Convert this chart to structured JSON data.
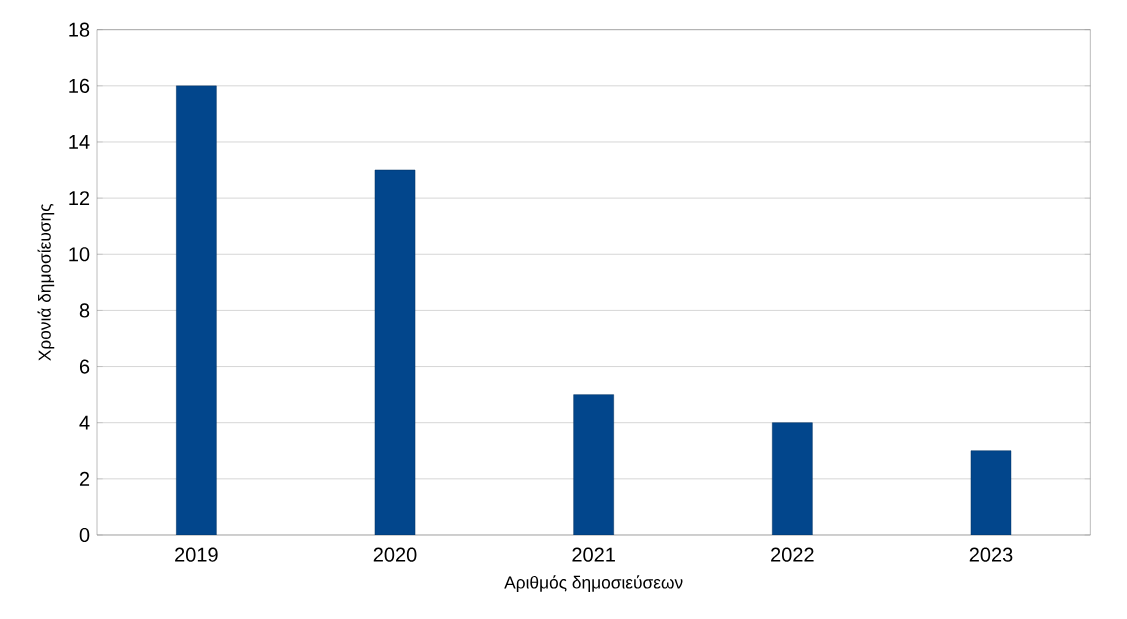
{
  "chart_data": {
    "type": "bar",
    "xlabel": "Αριθμός δημοσιεύσεων",
    "ylabel": "Χρονιά δημοσίευσης",
    "categories": [
      "2019",
      "2020",
      "2021",
      "2022",
      "2023"
    ],
    "values": [
      16,
      13,
      5,
      4,
      3
    ],
    "color": "#02468c",
    "ylim": [
      0,
      18
    ],
    "yticks": [
      0,
      2,
      4,
      6,
      8,
      10,
      12,
      14,
      16,
      18
    ],
    "grid": "y"
  }
}
